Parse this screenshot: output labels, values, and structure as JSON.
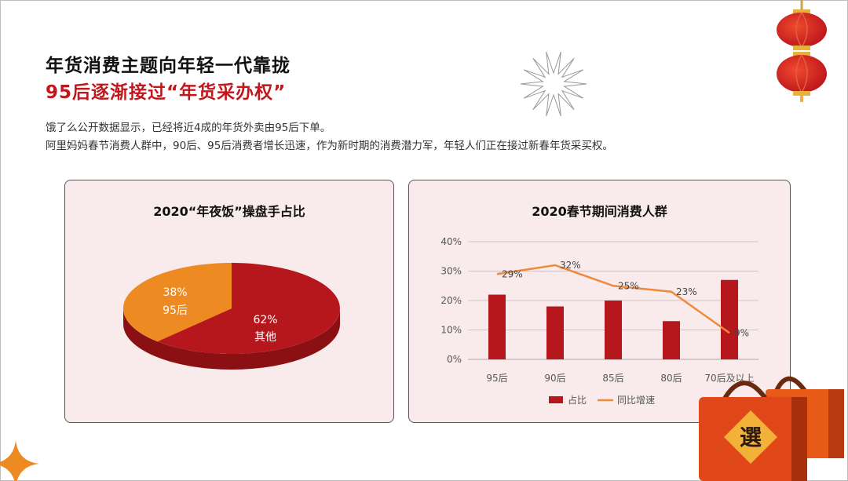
{
  "header": {
    "title_line1": "年货消费主题向年轻一代靠拢",
    "title_line2": "95后逐渐接过“年货采办权”"
  },
  "body": {
    "line1": "饿了么公开数据显示，已经将近4成的年货外卖由95后下单。",
    "line2": "阿里妈妈春节消费人群中，90后、95后消费者增长迅速，作为新时期的消费潜力军，年轻人们正在接过新春年货采买权。"
  },
  "decor": {
    "bag_glyph": "選"
  },
  "chart_data": [
    {
      "type": "pie",
      "title": "2020“年夜饭”操盘手占比",
      "slices": [
        {
          "label": "其他",
          "value": 62,
          "value_label": "62%",
          "color": "#b5171c"
        },
        {
          "label": "95后",
          "value": 38,
          "value_label": "38%",
          "color": "#ee8a22"
        }
      ]
    },
    {
      "type": "bar+line",
      "title": "2020春节期间消费人群",
      "categories": [
        "95后",
        "90后",
        "85后",
        "80后",
        "70后及以上"
      ],
      "ylim": [
        0,
        40
      ],
      "yticks": [
        "0%",
        "10%",
        "20%",
        "30%",
        "40%"
      ],
      "grid": true,
      "legend_placement": "bottom",
      "series": [
        {
          "name": "占比",
          "type": "bar",
          "color": "#b5171c",
          "values": [
            22,
            18,
            20,
            13,
            27
          ]
        },
        {
          "name": "同比增速",
          "type": "line",
          "color": "#ee8a3a",
          "values": [
            29,
            32,
            25,
            23,
            9
          ],
          "labels": [
            "29%",
            "32%",
            "25%",
            "23%",
            "9%"
          ]
        }
      ]
    }
  ]
}
